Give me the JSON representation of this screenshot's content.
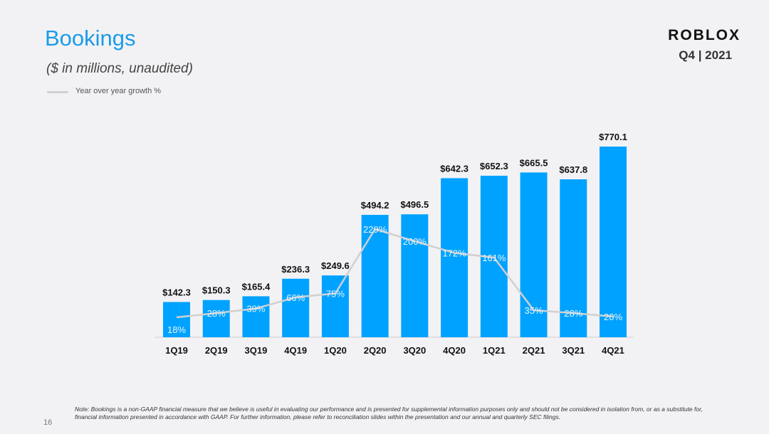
{
  "slide": {
    "title": "Bookings",
    "subtitle": "($ in millions,  unaudited)",
    "brand": "ROBLOX",
    "period": "Q4 | 2021",
    "page_number": "16",
    "note": "Note: Bookings is a non-GAAP financial measure that we believe is useful in evaluating our performance and is presented for supplemental information purposes only and should not be considered in isolation from, or as a substitute for, financial information presented in accordance with GAAP. For further information, please refer to reconciliation slides within the presentation and our annual and quarterly SEC filings."
  },
  "chart_data": {
    "type": "bar",
    "categories": [
      "1Q19",
      "2Q19",
      "3Q19",
      "4Q19",
      "1Q20",
      "2Q20",
      "3Q20",
      "4Q20",
      "1Q21",
      "2Q21",
      "3Q21",
      "4Q21"
    ],
    "series": [
      {
        "values": [
          142.3,
          150.3,
          165.4,
          236.3,
          249.6,
          494.2,
          496.5,
          642.3,
          652.3,
          665.5,
          637.8,
          770.1
        ],
        "value_labels": [
          "$142.3",
          "$150.3",
          "$165.4",
          "$236.3",
          "$249.6",
          "$494.2",
          "$496.5",
          "$642.3",
          "$652.3",
          "$665.5",
          "$637.8",
          "$770.1"
        ],
        "color": "#00a2ff"
      },
      {
        "name": "Year over year growth %",
        "type": "line",
        "values": [
          18,
          28,
          39,
          66,
          75,
          229,
          200,
          172,
          161,
          35,
          28,
          20
        ],
        "value_labels": [
          "18%",
          "28%",
          "39%",
          "66%",
          "75%",
          "229%",
          "200%",
          "172%",
          "161%",
          "35%",
          "28%",
          "20%"
        ],
        "color": "#d0d0d0"
      }
    ],
    "legend": "top-left",
    "grid": false,
    "ylim": [
      0,
      800
    ],
    "growth_ylim": [
      0,
      300
    ]
  }
}
